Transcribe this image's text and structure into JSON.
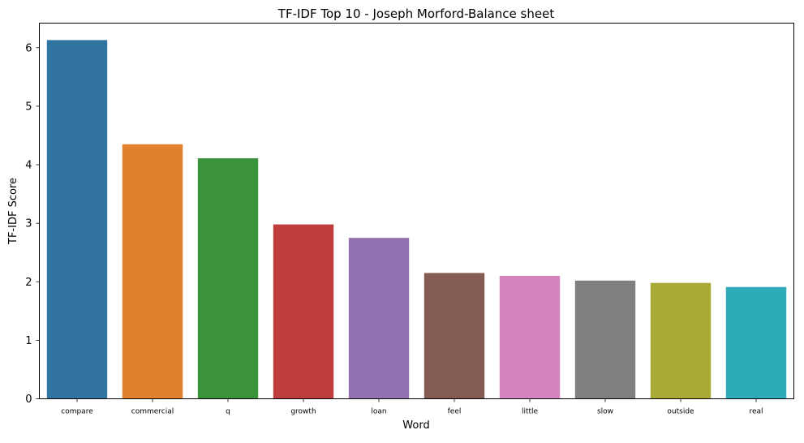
{
  "chart_data": {
    "type": "bar",
    "title": "TF-IDF Top 10 - Joseph Morford-Balance sheet",
    "xlabel": "Word",
    "ylabel": "TF-IDF Score",
    "categories": [
      "compare",
      "commercial",
      "q",
      "growth",
      "loan",
      "feel",
      "little",
      "slow",
      "outside",
      "real"
    ],
    "values": [
      6.13,
      4.35,
      4.11,
      2.98,
      2.75,
      2.15,
      2.1,
      2.02,
      1.98,
      1.91
    ],
    "colors": [
      "#3274a1",
      "#e1812c",
      "#3a923a",
      "#c03d3e",
      "#9372b2",
      "#845b53",
      "#d684bd",
      "#7f7f7f",
      "#a9aa35",
      "#2eabb8"
    ],
    "ylim": [
      0,
      6.42
    ],
    "yticks": [
      0,
      1,
      2,
      3,
      4,
      5,
      6
    ],
    "grid": false,
    "legend": "none"
  }
}
